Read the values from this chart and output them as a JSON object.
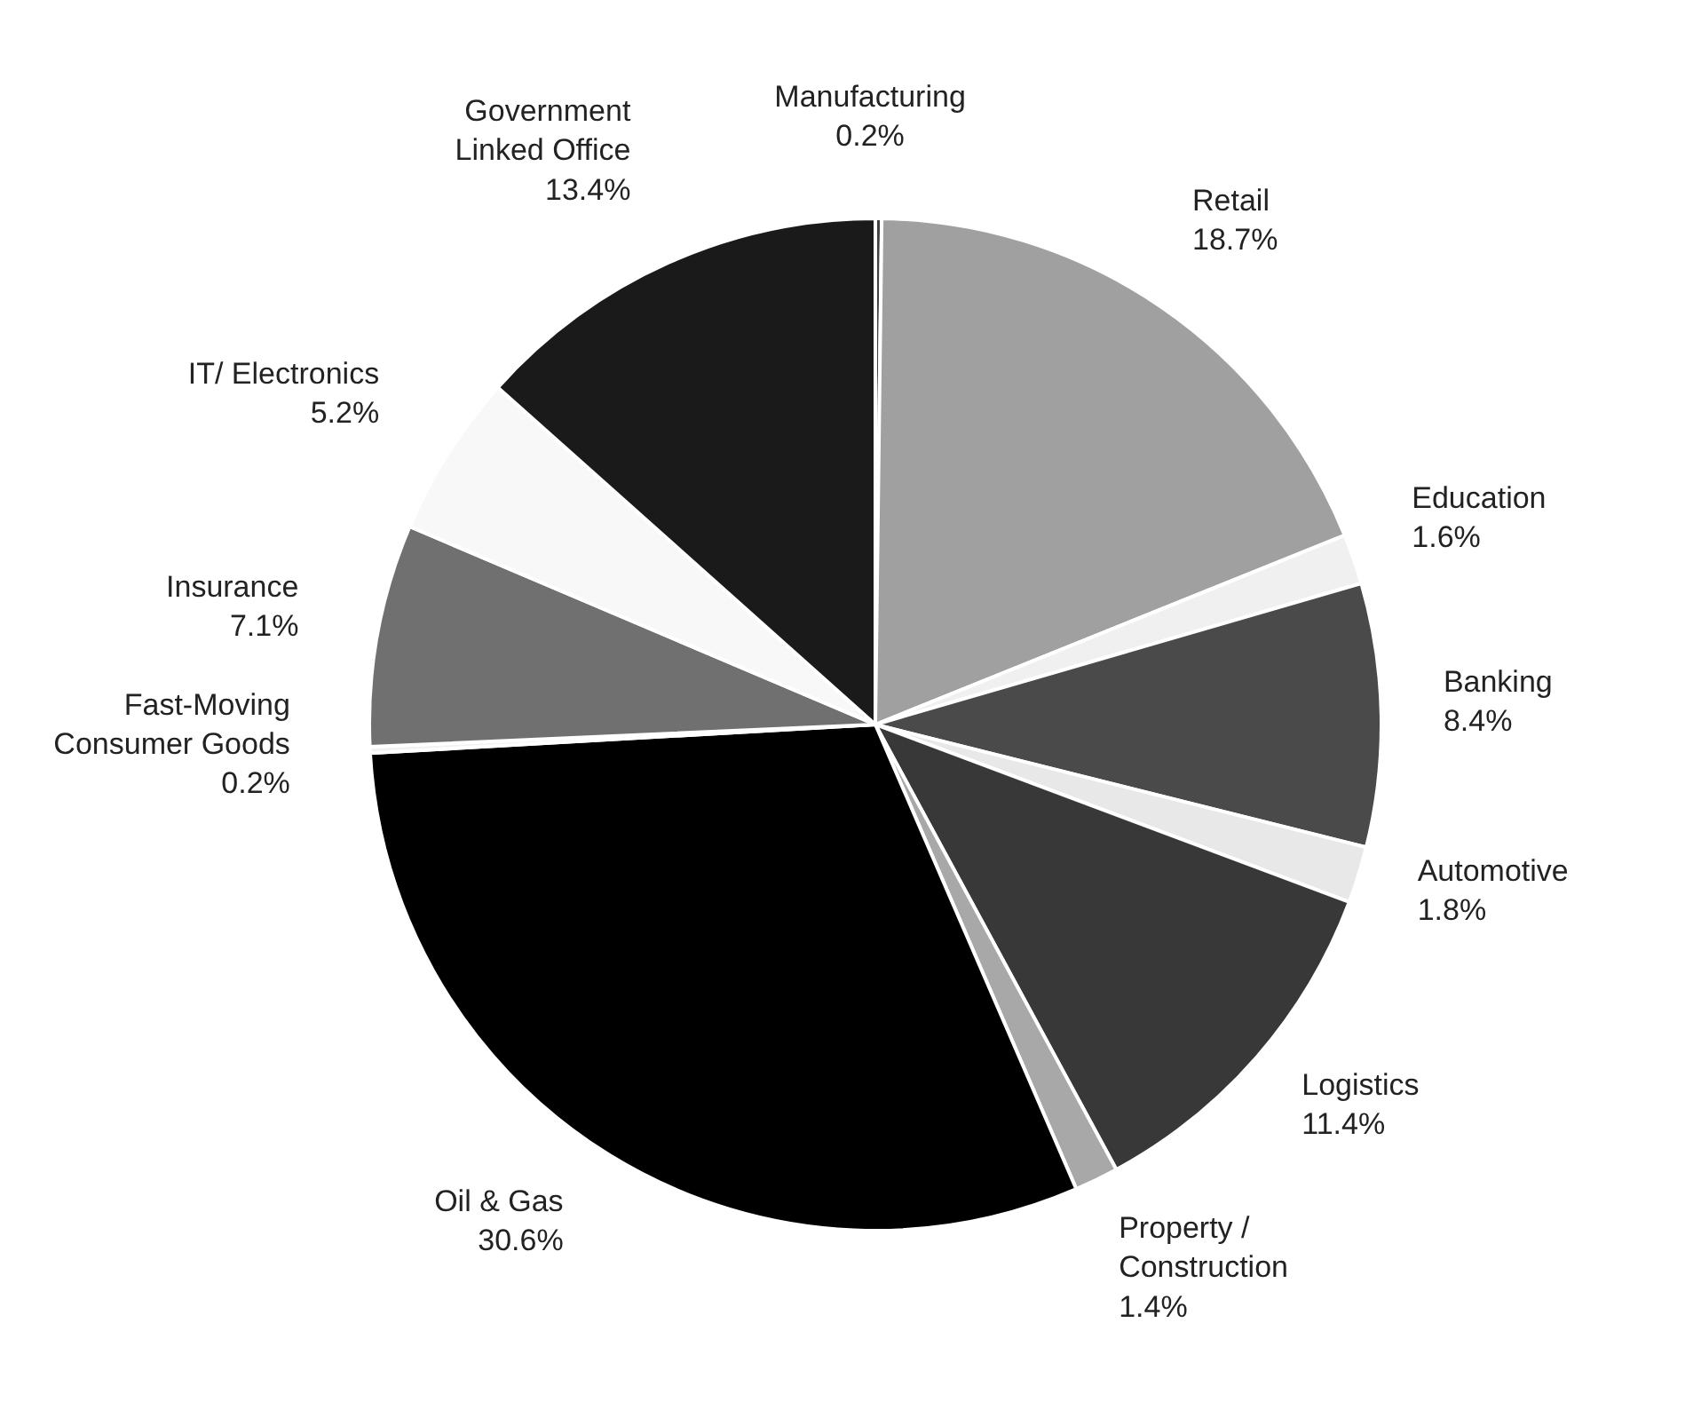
{
  "chart_data": {
    "type": "pie",
    "categories": [
      "Manufacturing",
      "Retail",
      "Education",
      "Banking",
      "Automotive",
      "Logistics",
      "Property / Construction",
      "Oil & Gas",
      "Fast-Moving Consumer Goods",
      "Insurance",
      "IT/ Electronics",
      "Government Linked Office"
    ],
    "values": [
      0.2,
      18.7,
      1.6,
      8.4,
      1.8,
      11.4,
      1.4,
      30.6,
      0.2,
      7.1,
      5.2,
      13.4
    ],
    "colors": [
      "#404040",
      "#a0a0a0",
      "#f0f0f0",
      "#4a4a4a",
      "#e8e8e8",
      "#383838",
      "#a8a8a8",
      "#000000",
      "#f2f2f2",
      "#707070",
      "#f8f8f8",
      "#1a1a1a"
    ],
    "value_labels": [
      "0.2%",
      "18.7%",
      "1.6%",
      "8.4%",
      "1.8%",
      "11.4%",
      "1.4%",
      "30.6%",
      "0.2%",
      "7.1%",
      "5.2%",
      "13.4%"
    ]
  }
}
